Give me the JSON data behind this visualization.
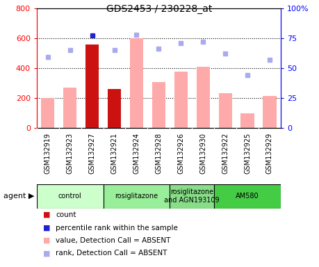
{
  "title": "GDS2453 / 230228_at",
  "samples": [
    "GSM132919",
    "GSM132923",
    "GSM132927",
    "GSM132921",
    "GSM132924",
    "GSM132928",
    "GSM132926",
    "GSM132930",
    "GSM132922",
    "GSM132925",
    "GSM132929"
  ],
  "bar_values": [
    200,
    270,
    555,
    260,
    600,
    305,
    375,
    410,
    235,
    100,
    215
  ],
  "bar_colors": [
    "#ffaaaa",
    "#ffaaaa",
    "#cc1111",
    "#cc1111",
    "#ffaaaa",
    "#ffaaaa",
    "#ffaaaa",
    "#ffaaaa",
    "#ffaaaa",
    "#ffaaaa",
    "#ffaaaa"
  ],
  "rank_values": [
    59,
    65,
    77,
    65,
    78,
    66,
    71,
    72,
    62,
    44,
    57
  ],
  "rank_colors": [
    "#aaaaee",
    "#aaaaee",
    "#2222cc",
    "#aaaaee",
    "#aaaaee",
    "#aaaaee",
    "#aaaaee",
    "#aaaaee",
    "#aaaaee",
    "#aaaaee",
    "#aaaaee"
  ],
  "ylim_left": [
    0,
    800
  ],
  "ylim_right": [
    0,
    100
  ],
  "yticks_left": [
    0,
    200,
    400,
    600,
    800
  ],
  "ytick_labels_right": [
    "0",
    "25",
    "50",
    "75",
    "100%"
  ],
  "agent_groups": [
    {
      "label": "control",
      "start": 0,
      "end": 3,
      "color": "#ccffcc"
    },
    {
      "label": "rosiglitazone",
      "start": 3,
      "end": 6,
      "color": "#99ee99"
    },
    {
      "label": "rosiglitazone\nand AGN193109",
      "start": 6,
      "end": 8,
      "color": "#88dd88"
    },
    {
      "label": "AM580",
      "start": 8,
      "end": 11,
      "color": "#44cc44"
    }
  ],
  "legend_items": [
    {
      "color": "#cc1111",
      "label": "count"
    },
    {
      "color": "#2222cc",
      "label": "percentile rank within the sample"
    },
    {
      "color": "#ffaaaa",
      "label": "value, Detection Call = ABSENT"
    },
    {
      "color": "#aaaaee",
      "label": "rank, Detection Call = ABSENT"
    }
  ],
  "bg_gray": "#dddddd"
}
